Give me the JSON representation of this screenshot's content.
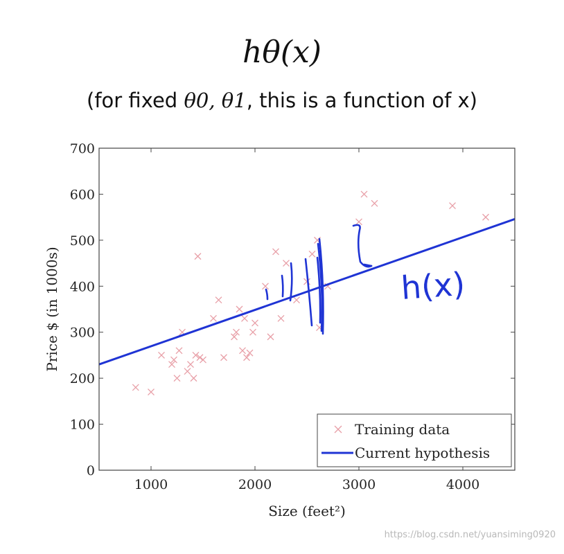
{
  "heading": {
    "formula": "hθ(x)",
    "sub_prefix": "(for fixed ",
    "sub_math": "θ0, θ1",
    "sub_suffix": ", this is a function of x)"
  },
  "chart_data": {
    "type": "scatter",
    "title": "",
    "xlabel": "Size (feet²)",
    "ylabel": "Price $ (in 1000s)",
    "xlim": [
      500,
      4500
    ],
    "ylim": [
      0,
      700
    ],
    "xticks": [
      1000,
      2000,
      3000,
      4000
    ],
    "yticks": [
      0,
      100,
      200,
      300,
      400,
      500,
      600,
      700
    ],
    "grid": false,
    "legend_position": "bottom-right",
    "series": [
      {
        "name": "Training data",
        "marker": "x",
        "color": "#e8a0a8",
        "points": [
          [
            852,
            180
          ],
          [
            1000,
            170
          ],
          [
            1100,
            250
          ],
          [
            1200,
            230
          ],
          [
            1220,
            240
          ],
          [
            1250,
            200
          ],
          [
            1270,
            260
          ],
          [
            1300,
            300
          ],
          [
            1350,
            215
          ],
          [
            1380,
            230
          ],
          [
            1410,
            200
          ],
          [
            1430,
            250
          ],
          [
            1450,
            465
          ],
          [
            1470,
            245
          ],
          [
            1500,
            240
          ],
          [
            1600,
            330
          ],
          [
            1650,
            370
          ],
          [
            1700,
            245
          ],
          [
            1800,
            290
          ],
          [
            1820,
            300
          ],
          [
            1850,
            350
          ],
          [
            1880,
            260
          ],
          [
            1900,
            330
          ],
          [
            1920,
            245
          ],
          [
            1950,
            255
          ],
          [
            1980,
            300
          ],
          [
            2000,
            320
          ],
          [
            2100,
            400
          ],
          [
            2150,
            290
          ],
          [
            2200,
            475
          ],
          [
            2250,
            330
          ],
          [
            2300,
            450
          ],
          [
            2400,
            370
          ],
          [
            2500,
            410
          ],
          [
            2550,
            470
          ],
          [
            2600,
            500
          ],
          [
            2620,
            310
          ],
          [
            2700,
            400
          ],
          [
            3000,
            540
          ],
          [
            3050,
            600
          ],
          [
            3150,
            580
          ],
          [
            3900,
            575
          ],
          [
            4220,
            550
          ]
        ]
      },
      {
        "name": "Current hypothesis",
        "type": "line",
        "color": "#1f34d4",
        "x": [
          500,
          4500
        ],
        "y": [
          230,
          546
        ]
      }
    ],
    "annotations": [
      {
        "text": "h(x)",
        "kind": "handwritten",
        "color": "#1f34d4"
      }
    ]
  },
  "watermark": "https://blog.csdn.net/yuansiming0920"
}
